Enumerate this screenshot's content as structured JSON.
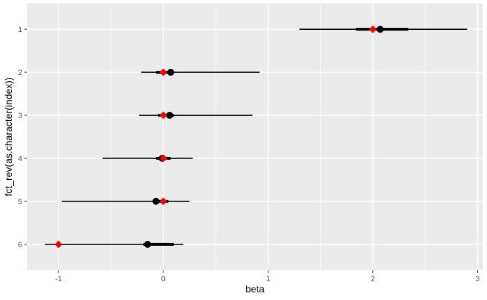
{
  "chart_data": {
    "type": "scatter",
    "subtype": "interval-plot",
    "xlabel": "beta",
    "ylabel": "fct_rev(as.character(index))",
    "xlim": [
      -1.3,
      3.05
    ],
    "x_ticks": [
      -1,
      0,
      1,
      2,
      3
    ],
    "x_tick_labels": [
      "-1",
      "0",
      "1",
      "2",
      "3"
    ],
    "categories": [
      "1",
      "2",
      "3",
      "4",
      "5",
      "6"
    ],
    "grid": true,
    "background": "#ebebeb",
    "series": [
      {
        "role": "interval",
        "color": "#000000",
        "data": [
          {
            "category": "1",
            "estimate": 2.07,
            "inner_low": 1.84,
            "inner_high": 2.34,
            "outer_low": 1.3,
            "outer_high": 2.9
          },
          {
            "category": "2",
            "estimate": 0.07,
            "inner_low": -0.07,
            "inner_high": 0.1,
            "outer_low": -0.21,
            "outer_high": 0.92
          },
          {
            "category": "3",
            "estimate": 0.06,
            "inner_low": -0.05,
            "inner_high": 0.1,
            "outer_low": -0.23,
            "outer_high": 0.85
          },
          {
            "category": "4",
            "estimate": -0.01,
            "inner_low": -0.07,
            "inner_high": 0.07,
            "outer_low": -0.58,
            "outer_high": 0.28
          },
          {
            "category": "5",
            "estimate": -0.07,
            "inner_low": -0.1,
            "inner_high": 0.05,
            "outer_low": -0.97,
            "outer_high": 0.25
          },
          {
            "category": "6",
            "estimate": -0.15,
            "inner_low": -0.19,
            "inner_high": 0.1,
            "outer_low": -1.13,
            "outer_high": 0.19
          }
        ]
      },
      {
        "role": "true-value",
        "marker": "diamond",
        "color": "#ff0000",
        "data": [
          {
            "category": "1",
            "value": 2.0
          },
          {
            "category": "2",
            "value": 0.0
          },
          {
            "category": "3",
            "value": 0.0
          },
          {
            "category": "4",
            "value": 0.0
          },
          {
            "category": "5",
            "value": 0.0
          },
          {
            "category": "6",
            "value": -1.0
          }
        ]
      }
    ]
  }
}
